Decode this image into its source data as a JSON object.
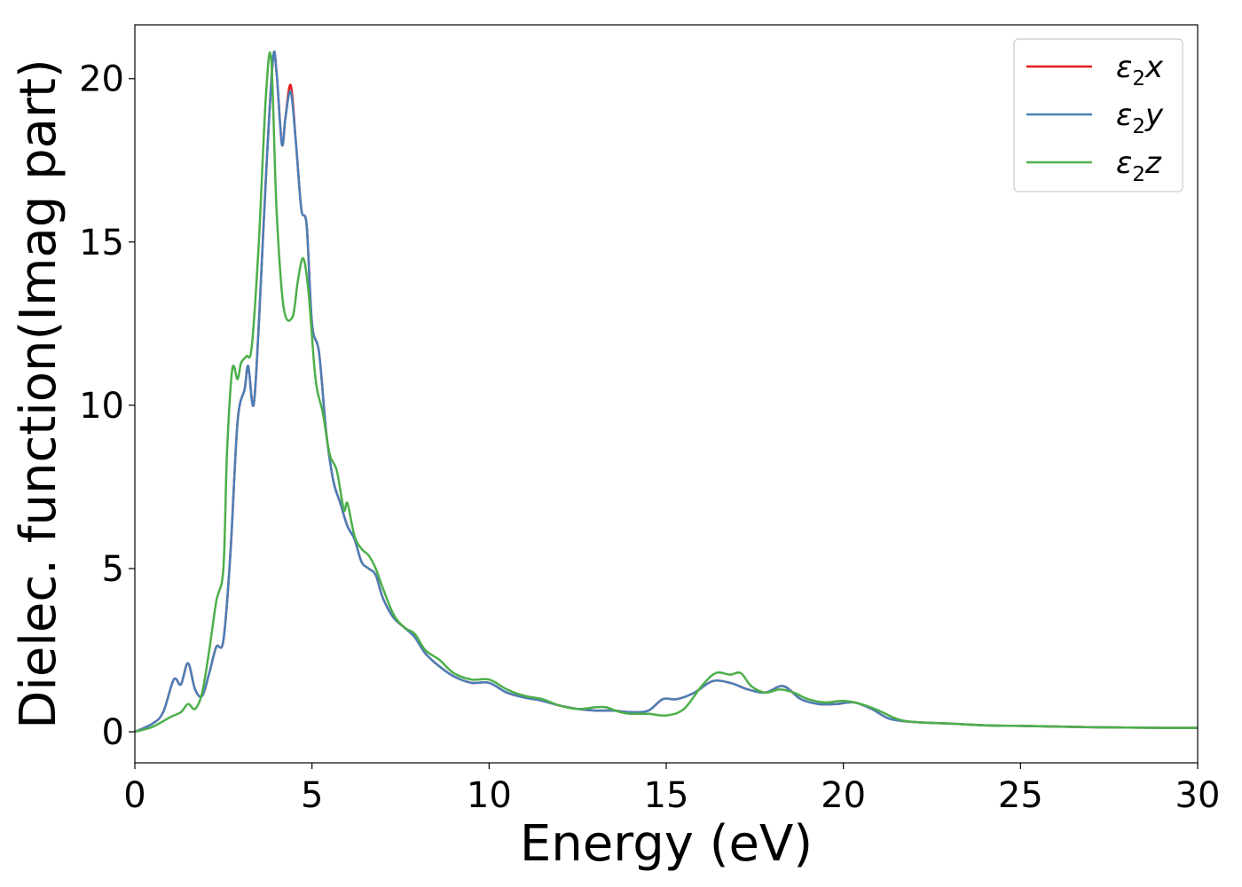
{
  "chart_data": {
    "type": "line",
    "xlabel": "Energy (eV)",
    "ylabel": "Dielec. function(Imag part)",
    "xlim": [
      0,
      30
    ],
    "ylim": [
      -0.95,
      21.65
    ],
    "xticks": [
      0,
      5,
      10,
      15,
      20,
      25,
      30
    ],
    "yticks": [
      0,
      5,
      10,
      15,
      20
    ],
    "grid": false,
    "legend_position": "top-right",
    "series": [
      {
        "name": "ε2x",
        "label_base": "ε",
        "label_sub": "2",
        "label_var": "x",
        "color": "#e41a1c",
        "x": [
          0,
          0.5,
          0.8,
          1.1,
          1.3,
          1.5,
          1.7,
          1.9,
          2.1,
          2.3,
          2.5,
          2.7,
          2.9,
          3.1,
          3.2,
          3.35,
          3.5,
          3.7,
          3.9,
          4.0,
          4.15,
          4.25,
          4.4,
          4.55,
          4.7,
          4.85,
          5.0,
          5.2,
          5.4,
          5.6,
          5.8,
          6.0,
          6.2,
          6.4,
          6.6,
          6.8,
          7.0,
          7.3,
          7.6,
          7.9,
          8.2,
          8.6,
          9.0,
          9.5,
          10.0,
          10.5,
          11.0,
          11.5,
          12.0,
          12.5,
          13.0,
          13.5,
          14.0,
          14.5,
          14.9,
          15.3,
          15.8,
          16.3,
          16.8,
          17.3,
          17.8,
          18.3,
          18.8,
          19.3,
          19.8,
          20.3,
          20.8,
          21.3,
          22.0,
          23.0,
          24.0,
          25.0,
          26.0,
          27.0,
          28.0,
          29.0,
          30.0
        ],
        "y": [
          0,
          0.25,
          0.6,
          1.6,
          1.45,
          2.1,
          1.3,
          1.1,
          1.8,
          2.6,
          2.8,
          5.5,
          9.5,
          10.5,
          11.2,
          10.0,
          12.5,
          17.0,
          20.6,
          20.2,
          18.0,
          18.8,
          19.8,
          18.0,
          16.0,
          15.5,
          12.5,
          11.6,
          9.2,
          7.7,
          7.0,
          6.3,
          5.9,
          5.2,
          5.0,
          4.8,
          4.1,
          3.5,
          3.2,
          2.9,
          2.4,
          2.0,
          1.7,
          1.5,
          1.5,
          1.2,
          1.05,
          0.95,
          0.8,
          0.7,
          0.65,
          0.65,
          0.6,
          0.65,
          1.0,
          1.0,
          1.2,
          1.55,
          1.5,
          1.3,
          1.2,
          1.4,
          1.0,
          0.85,
          0.85,
          0.9,
          0.7,
          0.4,
          0.3,
          0.25,
          0.2,
          0.18,
          0.16,
          0.14,
          0.13,
          0.12,
          0.12
        ]
      },
      {
        "name": "ε2y",
        "label_base": "ε",
        "label_sub": "2",
        "label_var": "y",
        "color": "#4a7fb8",
        "x": [
          0,
          0.5,
          0.8,
          1.1,
          1.3,
          1.5,
          1.7,
          1.9,
          2.1,
          2.3,
          2.5,
          2.7,
          2.9,
          3.1,
          3.2,
          3.35,
          3.5,
          3.7,
          3.9,
          4.0,
          4.15,
          4.25,
          4.4,
          4.55,
          4.7,
          4.85,
          5.0,
          5.2,
          5.4,
          5.6,
          5.8,
          6.0,
          6.2,
          6.4,
          6.6,
          6.8,
          7.0,
          7.3,
          7.6,
          7.9,
          8.2,
          8.6,
          9.0,
          9.5,
          10.0,
          10.5,
          11.0,
          11.5,
          12.0,
          12.5,
          13.0,
          13.5,
          14.0,
          14.5,
          14.9,
          15.3,
          15.8,
          16.3,
          16.8,
          17.3,
          17.8,
          18.3,
          18.8,
          19.3,
          19.8,
          20.3,
          20.8,
          21.3,
          22.0,
          23.0,
          24.0,
          25.0,
          26.0,
          27.0,
          28.0,
          29.0,
          30.0
        ],
        "y": [
          0,
          0.25,
          0.6,
          1.6,
          1.45,
          2.1,
          1.3,
          1.1,
          1.8,
          2.6,
          2.8,
          5.5,
          9.5,
          10.5,
          11.2,
          10.0,
          12.5,
          17.0,
          20.6,
          20.2,
          18.0,
          18.8,
          19.6,
          18.0,
          16.0,
          15.5,
          12.5,
          11.6,
          9.2,
          7.7,
          7.0,
          6.3,
          5.9,
          5.2,
          5.0,
          4.8,
          4.1,
          3.5,
          3.2,
          2.9,
          2.4,
          2.0,
          1.7,
          1.5,
          1.5,
          1.2,
          1.05,
          0.95,
          0.8,
          0.7,
          0.65,
          0.65,
          0.6,
          0.65,
          1.0,
          1.0,
          1.2,
          1.55,
          1.5,
          1.3,
          1.2,
          1.4,
          1.0,
          0.85,
          0.85,
          0.9,
          0.7,
          0.4,
          0.3,
          0.25,
          0.2,
          0.18,
          0.16,
          0.14,
          0.13,
          0.12,
          0.12
        ]
      },
      {
        "name": "ε2z",
        "label_base": "ε",
        "label_sub": "2",
        "label_var": "z",
        "color": "#4daf4a",
        "x": [
          0,
          0.5,
          1.0,
          1.3,
          1.5,
          1.7,
          1.9,
          2.1,
          2.3,
          2.5,
          2.6,
          2.75,
          2.9,
          3.0,
          3.15,
          3.3,
          3.5,
          3.7,
          3.85,
          4.0,
          4.2,
          4.45,
          4.6,
          4.75,
          4.9,
          5.1,
          5.3,
          5.5,
          5.7,
          5.9,
          6.0,
          6.2,
          6.4,
          6.6,
          6.8,
          7.0,
          7.3,
          7.6,
          7.9,
          8.2,
          8.6,
          9.0,
          9.5,
          10.0,
          10.5,
          11.0,
          11.5,
          12.0,
          12.5,
          13.0,
          13.3,
          13.7,
          14.0,
          14.5,
          15.0,
          15.5,
          16.0,
          16.4,
          16.8,
          17.1,
          17.4,
          17.8,
          18.2,
          18.6,
          19.0,
          19.5,
          20.0,
          20.5,
          21.0,
          21.5,
          22.0,
          23.0,
          24.0,
          25.0,
          26.0,
          27.0,
          28.0,
          29.0,
          30.0
        ],
        "y": [
          0,
          0.15,
          0.45,
          0.6,
          0.85,
          0.7,
          1.2,
          2.5,
          4.0,
          5.0,
          8.5,
          11.1,
          10.8,
          11.3,
          11.5,
          11.8,
          15.0,
          19.5,
          20.6,
          16.0,
          13.0,
          12.7,
          13.8,
          14.5,
          13.5,
          10.8,
          9.8,
          8.5,
          8.0,
          6.8,
          7.0,
          6.0,
          5.6,
          5.4,
          5.0,
          4.4,
          3.6,
          3.2,
          3.0,
          2.5,
          2.2,
          1.8,
          1.6,
          1.6,
          1.3,
          1.1,
          1.0,
          0.8,
          0.7,
          0.75,
          0.75,
          0.6,
          0.55,
          0.55,
          0.5,
          0.7,
          1.4,
          1.8,
          1.75,
          1.8,
          1.4,
          1.2,
          1.3,
          1.2,
          1.0,
          0.9,
          0.95,
          0.85,
          0.65,
          0.4,
          0.3,
          0.25,
          0.2,
          0.18,
          0.16,
          0.14,
          0.13,
          0.12,
          0.12
        ]
      }
    ]
  }
}
